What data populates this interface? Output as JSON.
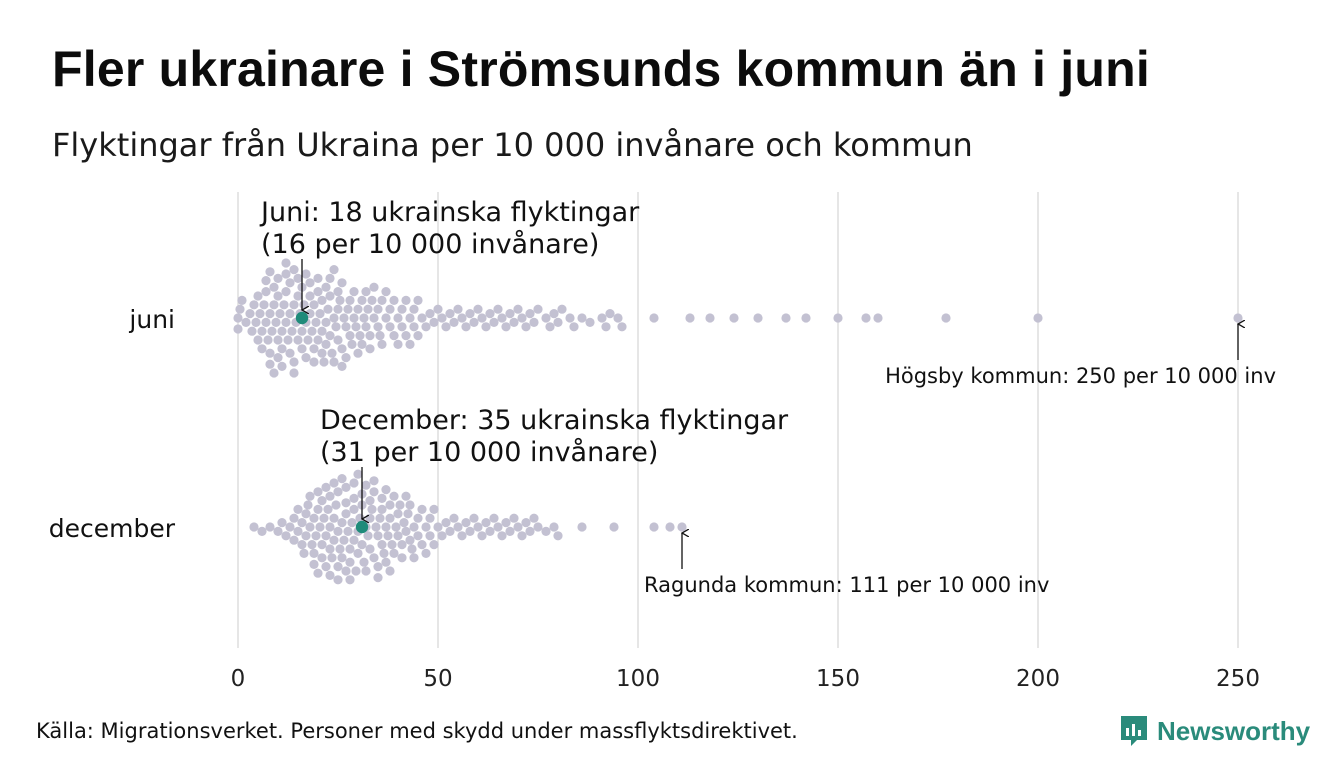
{
  "title": "Fler ukrainare i Strömsunds kommun än i juni",
  "subtitle": "Flyktingar från Ukraina per 10 000 invånare och kommun",
  "source": "Källa: Migrationsverket. Personer med skydd under massflyktsdirektivet.",
  "brand": {
    "name": "Newsworthy",
    "color": "#2a8b7b"
  },
  "chart_data": {
    "type": "scatter",
    "subtype": "beeswarm",
    "xlim": [
      0,
      250
    ],
    "x_ticks": [
      0,
      50,
      100,
      150,
      200,
      250
    ],
    "grid": true,
    "colors": {
      "dots": "#c3c1d2",
      "highlight": "#1f8b7a",
      "grid": "#d6d6d6"
    },
    "rows": [
      {
        "label": "juni",
        "highlight": {
          "value": 16,
          "line1": "Juni: 18 ukrainska flyktingar",
          "line2": "(16 per 10 000 invånare)"
        },
        "max": {
          "value": 250,
          "label": "Högsby kommun: 250 per 10 000 inv"
        },
        "values": [
          0,
          0,
          0.5,
          1,
          2,
          3,
          3.5,
          4,
          4.5,
          5,
          5,
          5.5,
          6,
          6,
          6.5,
          7,
          7,
          7,
          7.5,
          8,
          8,
          8,
          8,
          8.5,
          9,
          9,
          9,
          9.5,
          10,
          10,
          10,
          10,
          10.5,
          11,
          11,
          11,
          11.5,
          12,
          12,
          12,
          12,
          12.5,
          13,
          13,
          13,
          13.5,
          14,
          14,
          14,
          14,
          14.5,
          15,
          15,
          15,
          15.5,
          16,
          16,
          16,
          16.5,
          17,
          17,
          17,
          17.5,
          18,
          18,
          18,
          18.5,
          19,
          19,
          19,
          19.5,
          20,
          20,
          20,
          20.5,
          21,
          21,
          21,
          21.5,
          22,
          22,
          22,
          22.5,
          23,
          23,
          23,
          23.5,
          24,
          24,
          24,
          24.5,
          25,
          25,
          25,
          25.5,
          26,
          26,
          26,
          26.5,
          27,
          27,
          27.5,
          28,
          28,
          28.5,
          29,
          29,
          29.5,
          30,
          30,
          30.5,
          31,
          31,
          31.5,
          32,
          32,
          32.5,
          33,
          33,
          33.5,
          34,
          34,
          35,
          35,
          35.5,
          36,
          36,
          37,
          37,
          38,
          38,
          39,
          39,
          40,
          40,
          41,
          41,
          42,
          42,
          43,
          43,
          44,
          44,
          45,
          45,
          46,
          47,
          48,
          49,
          50,
          51,
          52,
          53,
          54,
          55,
          56,
          57,
          58,
          59,
          60,
          61,
          62,
          63,
          64,
          65,
          66,
          67,
          68,
          69,
          70,
          71,
          72,
          73,
          74,
          75,
          77,
          78,
          79,
          80,
          81,
          83,
          84,
          86,
          88,
          91,
          92,
          93,
          95,
          96,
          104,
          113,
          118,
          124,
          130,
          137,
          142,
          150,
          157,
          160,
          177,
          200,
          250
        ]
      },
      {
        "label": "december",
        "highlight": {
          "value": 31,
          "line1": "December: 35 ukrainska flyktingar",
          "line2": "(31 per 10 000 invånare)"
        },
        "max": {
          "value": 111,
          "label": "Ragunda kommun: 111 per 10 000 inv"
        },
        "values": [
          4,
          6,
          8,
          10,
          11,
          12,
          13,
          14,
          14,
          15,
          15,
          16,
          16,
          16.5,
          17,
          17,
          17.5,
          18,
          18,
          18.5,
          19,
          19,
          19,
          19.5,
          20,
          20,
          20,
          20.5,
          21,
          21,
          21,
          21.5,
          22,
          22,
          22,
          22.5,
          23,
          23,
          23,
          23,
          23.5,
          24,
          24,
          24,
          24.5,
          25,
          25,
          25,
          25,
          25.5,
          26,
          26,
          26,
          26.5,
          27,
          27,
          27,
          27,
          27.5,
          28,
          28,
          28,
          28.5,
          29,
          29,
          29,
          29,
          29.5,
          30,
          30,
          30,
          30.5,
          31,
          31,
          31,
          31.5,
          32,
          32,
          32,
          32.5,
          33,
          33,
          33,
          33.5,
          34,
          34,
          34,
          34.5,
          35,
          35,
          35,
          35.5,
          36,
          36,
          36,
          36.5,
          37,
          37,
          37,
          37.5,
          38,
          38,
          38,
          38.5,
          39,
          39,
          39.5,
          40,
          40,
          40.5,
          41,
          41,
          41.5,
          42,
          42,
          42.5,
          43,
          43,
          43.5,
          44,
          44,
          45,
          45,
          46,
          46,
          47,
          47,
          48,
          48,
          49,
          49,
          50,
          51,
          52,
          53,
          54,
          55,
          56,
          57,
          58,
          59,
          60,
          61,
          62,
          63,
          64,
          65,
          66,
          67,
          68,
          69,
          70,
          71,
          72,
          73,
          74,
          75,
          77,
          79,
          80,
          86,
          94,
          104,
          108,
          111
        ]
      }
    ]
  }
}
